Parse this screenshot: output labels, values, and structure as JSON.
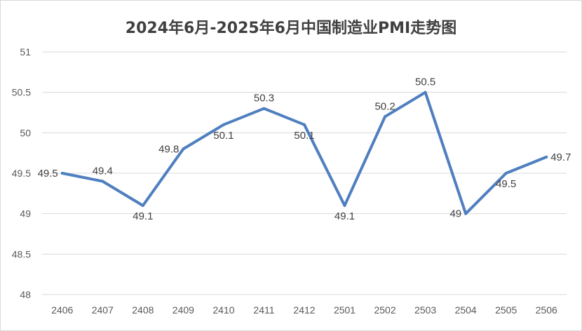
{
  "chart_data": {
    "type": "line",
    "title": "2024年6月-2025年6月中国制造业PMI走势图",
    "categories": [
      "2406",
      "2407",
      "2408",
      "2409",
      "2410",
      "2411",
      "2412",
      "2501",
      "2502",
      "2503",
      "2504",
      "2505",
      "2506"
    ],
    "series": [
      {
        "values": [
          49.5,
          49.4,
          49.1,
          49.8,
          50.1,
          50.3,
          50.1,
          49.1,
          50.2,
          50.5,
          49,
          49.5,
          49.7
        ]
      }
    ],
    "data_labels": [
      "49.5",
      "49.4",
      "49.1",
      "49.8",
      "50.1",
      "50.3",
      "50.1",
      "49.1",
      "50.2",
      "50.5",
      "49",
      "49.5",
      "49.7"
    ],
    "ylim": [
      48,
      51
    ],
    "yticks": [
      "48",
      "48.5",
      "49",
      "49.5",
      "50",
      "50.5",
      "51"
    ],
    "grid": true,
    "legend": "none",
    "line_color": "#4f7fbf",
    "grid_color": "#d9d9d9",
    "label_color": "#404040"
  }
}
